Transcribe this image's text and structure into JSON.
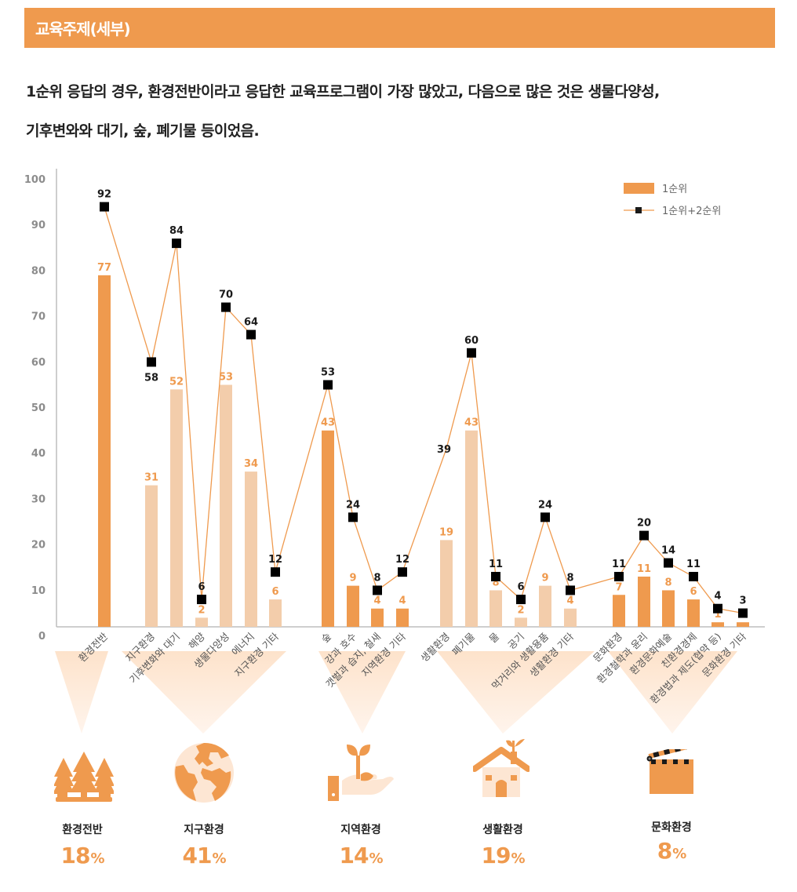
{
  "header": {
    "title": "교육주제(세부)"
  },
  "summary": {
    "line1": "1순위 응답의 경우, 환경전반이라고 응답한 교육프로그램이 가장 많았고, 다음으로 많은 것은 생물다양성,",
    "line2": "기후변와와 대기, 숲, 폐기물 등이었음."
  },
  "colors": {
    "accent": "#ef9a4e",
    "accent_light": "#f3cdab",
    "marker": "#000000",
    "triangle": "#fde6d3"
  },
  "chart_data": {
    "type": "bar",
    "title": "",
    "xlabel": "",
    "ylabel": "",
    "ylim": [
      0,
      100
    ],
    "yticks": [
      0,
      10,
      20,
      30,
      40,
      50,
      60,
      70,
      80,
      90,
      100
    ],
    "legend": {
      "position": "top-right",
      "entries": [
        "1순위",
        "1순위+2순위"
      ]
    },
    "categories": [
      "환경전반",
      "지구환경",
      "기후변화와 대기",
      "해양",
      "생물다양성",
      "에너지",
      "지구환경 기타",
      "숲",
      "강과 호수",
      "갯벌과 습지, 철새",
      "지역환경 기타",
      "생활환경",
      "폐기물",
      "물",
      "공기",
      "먹거리와 생활용품",
      "생활환경 기타",
      "문화환경",
      "환경철학과 윤리",
      "환경문화예술",
      "친환경경제",
      "환경법과 제도(협약 등)",
      "문화환경 기타"
    ],
    "groups_of_categories": [
      1,
      6,
      4,
      6,
      6
    ],
    "series": [
      {
        "name": "1순위",
        "kind": "bar",
        "values": [
          77,
          31,
          52,
          2,
          53,
          34,
          6,
          43,
          9,
          4,
          4,
          19,
          43,
          8,
          2,
          9,
          4,
          7,
          11,
          8,
          6,
          1,
          1
        ],
        "highlight": [
          true,
          false,
          false,
          false,
          false,
          false,
          false,
          true,
          true,
          true,
          true,
          false,
          false,
          false,
          false,
          false,
          false,
          true,
          true,
          true,
          true,
          true,
          true
        ]
      },
      {
        "name": "1순위+2순위",
        "kind": "line",
        "values": [
          92,
          58,
          84,
          6,
          70,
          64,
          12,
          53,
          24,
          8,
          12,
          39,
          60,
          11,
          6,
          24,
          8,
          11,
          20,
          14,
          11,
          4,
          3
        ],
        "marker_hidden": [
          false,
          false,
          false,
          false,
          false,
          false,
          false,
          false,
          false,
          false,
          false,
          true,
          false,
          false,
          false,
          false,
          false,
          false,
          false,
          false,
          false,
          false,
          false
        ],
        "label_below": [
          false,
          true,
          false,
          false,
          false,
          false,
          false,
          false,
          false,
          false,
          false,
          false,
          false,
          false,
          false,
          false,
          false,
          false,
          false,
          false,
          false,
          false,
          false
        ]
      }
    ]
  },
  "groups": [
    {
      "name": "환경전반",
      "percent": "18",
      "icon": "forest-icon"
    },
    {
      "name": "지구환경",
      "percent": "41",
      "icon": "globe-icon"
    },
    {
      "name": "지역환경",
      "percent": "14",
      "icon": "hand-sprout-icon"
    },
    {
      "name": "생활환경",
      "percent": "19",
      "icon": "house-sprout-icon"
    },
    {
      "name": "문화환경",
      "percent": "8",
      "icon": "clapperboard-icon"
    }
  ],
  "percent_sign": "%"
}
